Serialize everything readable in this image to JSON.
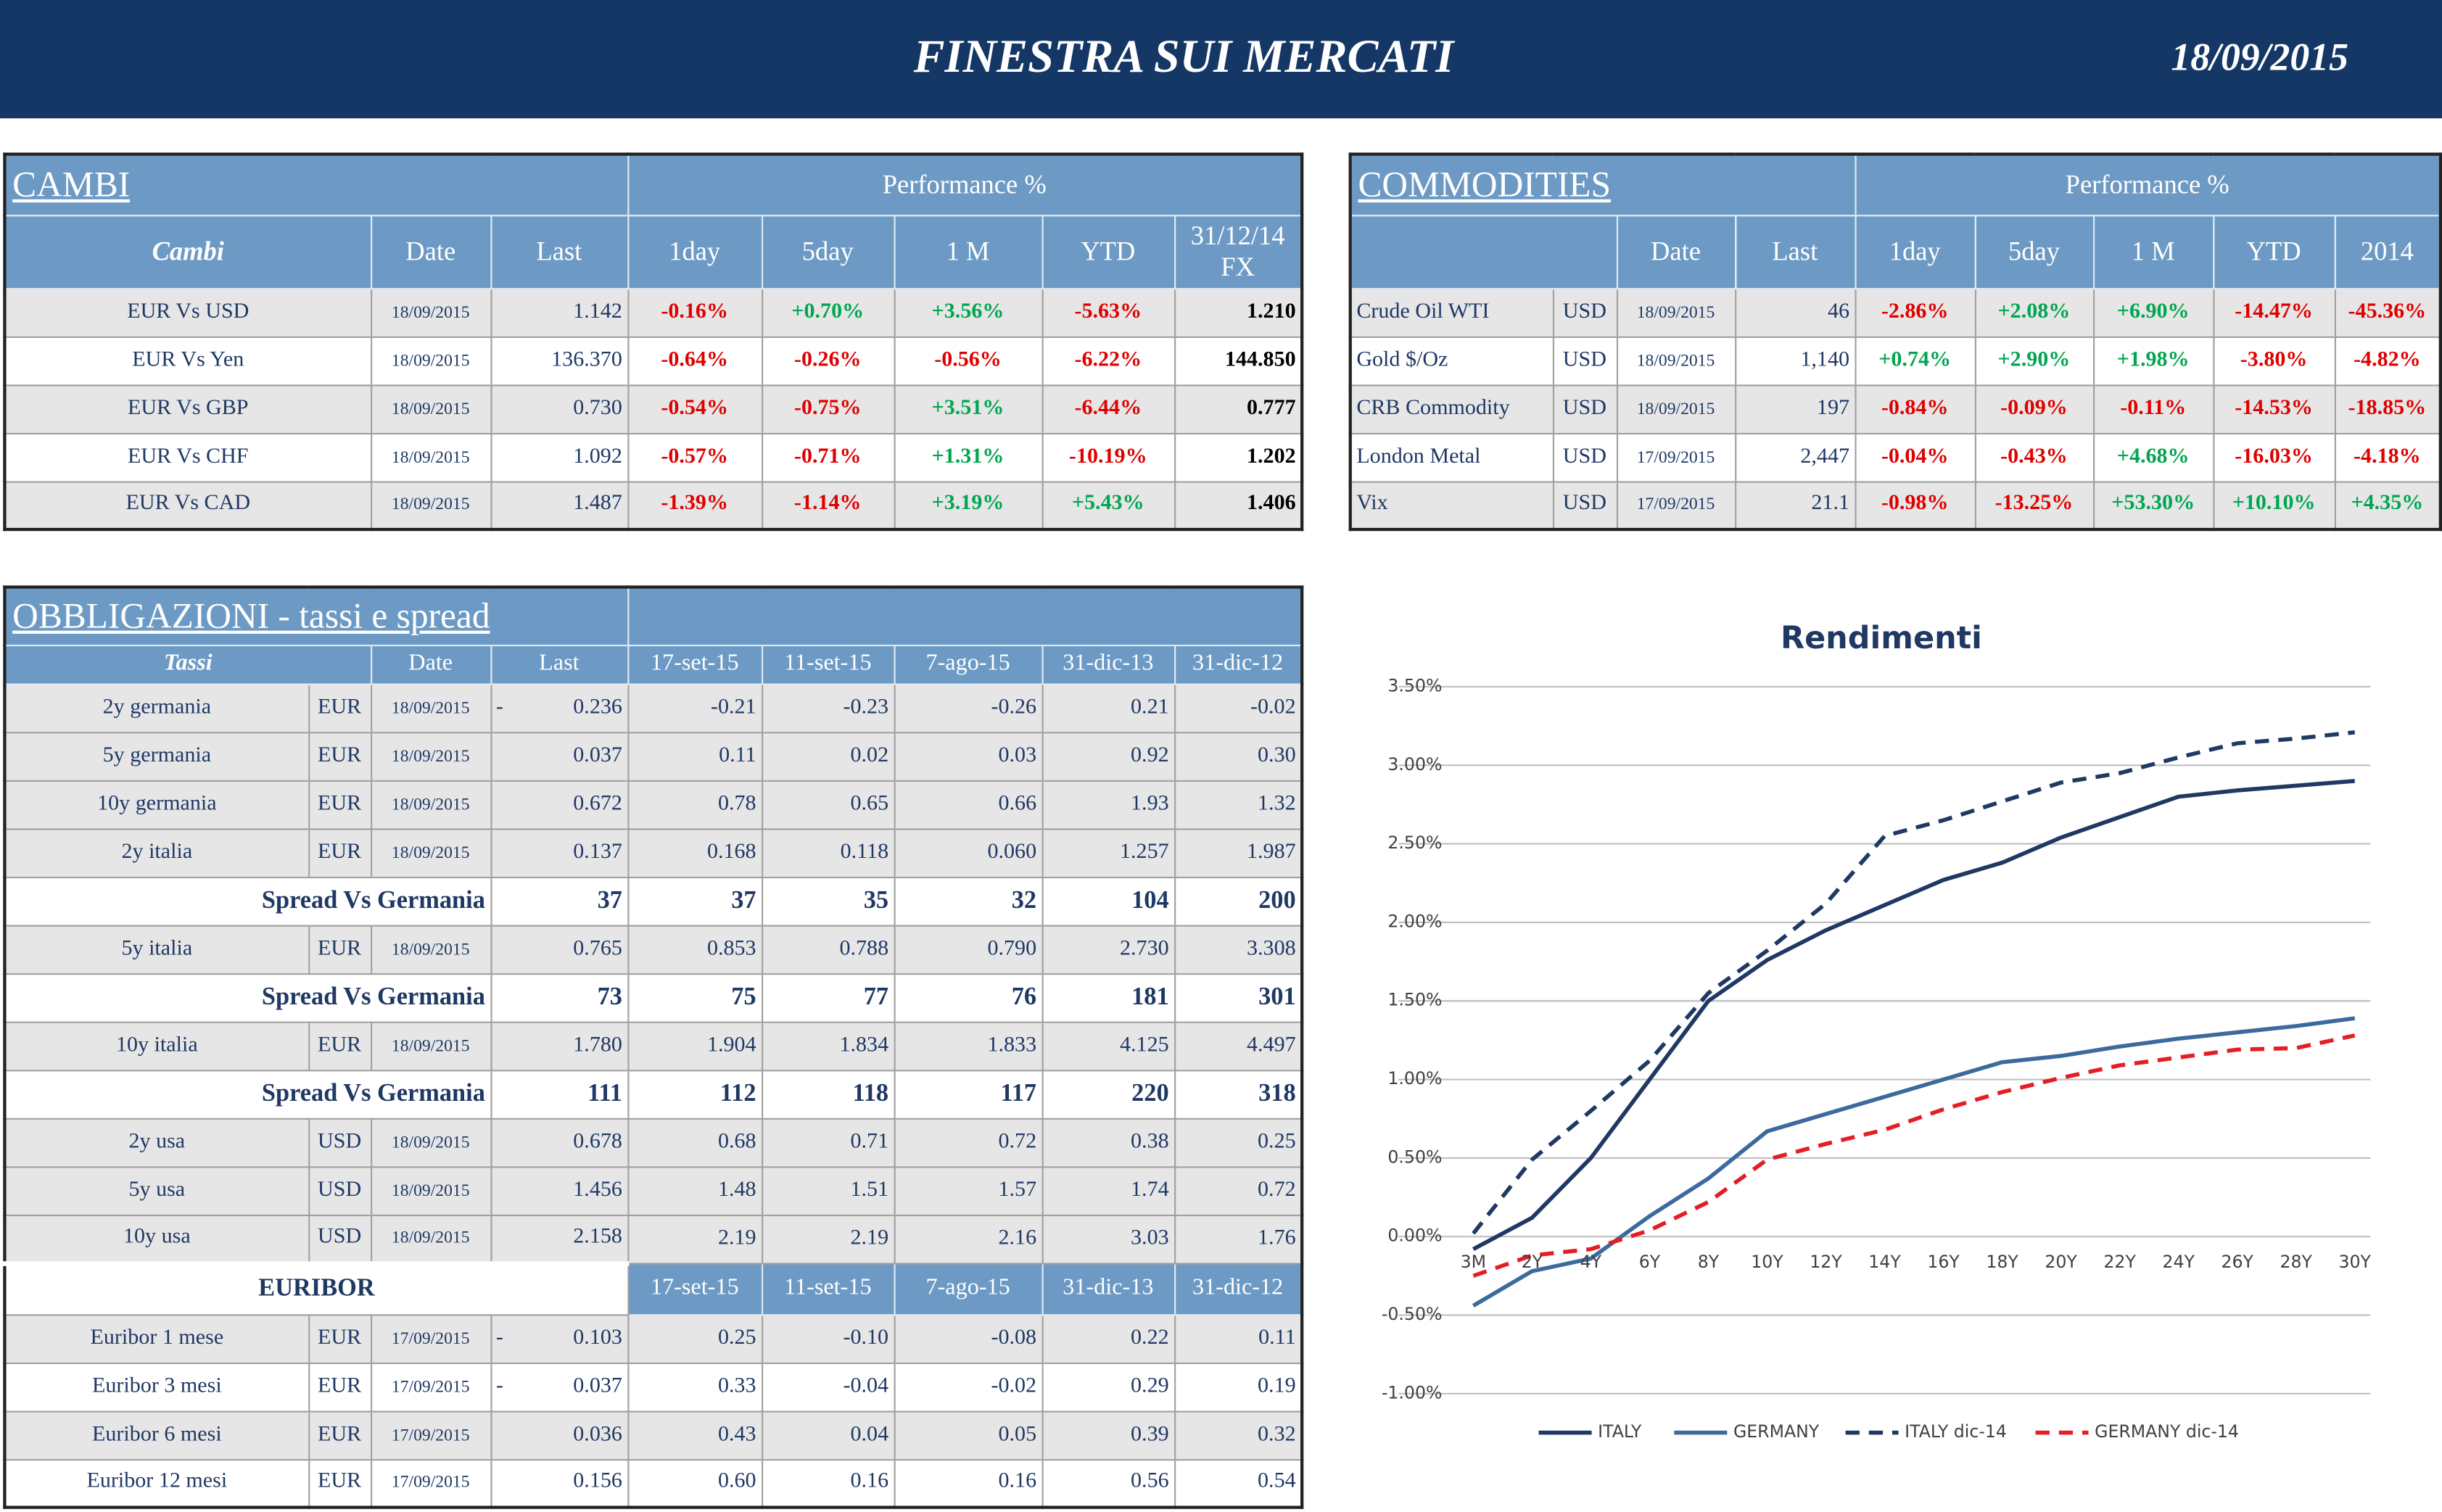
{
  "header": {
    "title": "FINESTRA SUI MERCATI",
    "date": "18/09/2015"
  },
  "cambi": {
    "title": "CAMBI",
    "performance": "Performance  %",
    "columns": [
      "Cambi",
      "Date",
      "Last",
      "1day",
      "5day",
      "1 M",
      "YTD",
      "31/12/14 FX"
    ],
    "rows": [
      [
        "EUR Vs USD",
        "18/09/2015",
        "1.142",
        "-0.16%",
        "+0.70%",
        "+3.56%",
        "-5.63%",
        "1.210"
      ],
      [
        "EUR Vs Yen",
        "18/09/2015",
        "136.370",
        "-0.64%",
        "-0.26%",
        "-0.56%",
        "-6.22%",
        "144.850"
      ],
      [
        "EUR Vs GBP",
        "18/09/2015",
        "0.730",
        "-0.54%",
        "-0.75%",
        "+3.51%",
        "-6.44%",
        "0.777"
      ],
      [
        "EUR Vs CHF",
        "18/09/2015",
        "1.092",
        "-0.57%",
        "-0.71%",
        "+1.31%",
        "-10.19%",
        "1.202"
      ],
      [
        "EUR Vs CAD",
        "18/09/2015",
        "1.487",
        "-1.39%",
        "-1.14%",
        "+3.19%",
        "+5.43%",
        "1.406"
      ]
    ]
  },
  "commodities": {
    "title": "COMMODITIES",
    "performance": "Performance  %",
    "columns": [
      "Date",
      "Last",
      "1day",
      "5day",
      "1 M",
      "YTD",
      "2014"
    ],
    "rows": [
      [
        "Crude Oil WTI",
        "USD",
        "18/09/2015",
        "46",
        "-2.86%",
        "+2.08%",
        "+6.90%",
        "-14.47%",
        "-45.36%"
      ],
      [
        "Gold $/Oz",
        "USD",
        "18/09/2015",
        "1,140",
        "+0.74%",
        "+2.90%",
        "+1.98%",
        "-3.80%",
        "-4.82%"
      ],
      [
        "CRB Commodity",
        "USD",
        "18/09/2015",
        "197",
        "-0.84%",
        "-0.09%",
        "-0.11%",
        "-14.53%",
        "-18.85%"
      ],
      [
        "London Metal",
        "USD",
        "17/09/2015",
        "2,447",
        "-0.04%",
        "-0.43%",
        "+4.68%",
        "-16.03%",
        "-4.18%"
      ],
      [
        "Vix",
        "USD",
        "17/09/2015",
        "21.1",
        "-0.98%",
        "-13.25%",
        "+53.30%",
        "+10.10%",
        "+4.35%"
      ]
    ]
  },
  "obbligazioni": {
    "title": "OBBLIGAZIONI - tassi e spread",
    "columns": [
      "Tassi",
      "Date",
      "Last",
      "17-set-15",
      "11-set-15",
      "7-ago-15",
      "31-dic-13",
      "31-dic-12"
    ],
    "rows": [
      {
        "name": "2y germania",
        "currency": "EUR",
        "date": "18/09/2015",
        "sign": "-",
        "last": "0.236",
        "values": [
          "-0.21",
          "-0.23",
          "-0.26",
          "0.21",
          "-0.02"
        ]
      },
      {
        "name": "5y germania",
        "currency": "EUR",
        "date": "18/09/2015",
        "last": "0.037",
        "values": [
          "0.11",
          "0.02",
          "0.03",
          "0.92",
          "0.30"
        ]
      },
      {
        "name": "10y germania",
        "currency": "EUR",
        "date": "18/09/2015",
        "last": "0.672",
        "values": [
          "0.78",
          "0.65",
          "0.66",
          "1.93",
          "1.32"
        ]
      },
      {
        "name": "2y italia",
        "currency": "EUR",
        "date": "18/09/2015",
        "last": "0.137",
        "values": [
          "0.168",
          "0.118",
          "0.060",
          "1.257",
          "1.987"
        ]
      },
      {
        "spread": "Spread Vs Germania",
        "last": "37",
        "values": [
          "37",
          "35",
          "32",
          "104",
          "200"
        ]
      },
      {
        "name": "5y italia",
        "currency": "EUR",
        "date": "18/09/2015",
        "last": "0.765",
        "values": [
          "0.853",
          "0.788",
          "0.790",
          "2.730",
          "3.308"
        ]
      },
      {
        "spread": "Spread Vs Germania",
        "last": "73",
        "values": [
          "75",
          "77",
          "76",
          "181",
          "301"
        ]
      },
      {
        "name": "10y italia",
        "currency": "EUR",
        "date": "18/09/2015",
        "last": "1.780",
        "values": [
          "1.904",
          "1.834",
          "1.833",
          "4.125",
          "4.497"
        ]
      },
      {
        "spread": "Spread Vs Germania",
        "last": "111",
        "values": [
          "112",
          "118",
          "117",
          "220",
          "318"
        ]
      },
      {
        "name": "2y usa",
        "currency": "USD",
        "date": "18/09/2015",
        "last": "0.678",
        "values": [
          "0.68",
          "0.71",
          "0.72",
          "0.38",
          "0.25"
        ]
      },
      {
        "name": "5y usa",
        "currency": "USD",
        "date": "18/09/2015",
        "last": "1.456",
        "values": [
          "1.48",
          "1.51",
          "1.57",
          "1.74",
          "0.72"
        ]
      },
      {
        "name": "10y usa",
        "currency": "USD",
        "date": "18/09/2015",
        "last": "2.158",
        "values": [
          "2.19",
          "2.19",
          "2.16",
          "3.03",
          "1.76"
        ]
      }
    ]
  },
  "euribor": {
    "title": "EURIBOR",
    "columns": [
      "17-set-15",
      "11-set-15",
      "7-ago-15",
      "31-dic-13",
      "31-dic-12"
    ],
    "rows": [
      {
        "name": "Euribor 1 mese",
        "currency": "EUR",
        "date": "17/09/2015",
        "sign": "-",
        "last": "0.103",
        "values": [
          "0.25",
          "-0.10",
          "-0.08",
          "0.22",
          "0.11"
        ]
      },
      {
        "name": "Euribor 3 mesi",
        "currency": "EUR",
        "date": "17/09/2015",
        "sign": "-",
        "last": "0.037",
        "values": [
          "0.33",
          "-0.04",
          "-0.02",
          "0.29",
          "0.19"
        ]
      },
      {
        "name": "Euribor 6 mesi",
        "currency": "EUR",
        "date": "17/09/2015",
        "last": "0.036",
        "values": [
          "0.43",
          "0.04",
          "0.05",
          "0.39",
          "0.32"
        ]
      },
      {
        "name": "Euribor 12 mesi",
        "currency": "EUR",
        "date": "17/09/2015",
        "last": "0.156",
        "values": [
          "0.60",
          "0.16",
          "0.16",
          "0.56",
          "0.54"
        ]
      }
    ]
  },
  "chart_data": {
    "type": "line",
    "title": "Rendimenti",
    "categories": [
      "3M",
      "2Y",
      "4Y",
      "6Y",
      "8Y",
      "10Y",
      "12Y",
      "14Y",
      "16Y",
      "18Y",
      "20Y",
      "22Y",
      "24Y",
      "26Y",
      "28Y",
      "30Y"
    ],
    "series": [
      {
        "name": "ITALY",
        "color": "#1f3864",
        "dashed": false,
        "values": [
          -0.08,
          0.12,
          0.5,
          1.0,
          1.5,
          1.76,
          1.95,
          2.11,
          2.27,
          2.38,
          2.54,
          2.67,
          2.8,
          2.84,
          2.87,
          2.9
        ]
      },
      {
        "name": "GERMANY",
        "color": "#3d6a9e",
        "dashed": false,
        "values": [
          -0.44,
          -0.22,
          -0.14,
          0.13,
          0.37,
          0.67,
          0.78,
          0.89,
          1.0,
          1.11,
          1.15,
          1.21,
          1.26,
          1.3,
          1.34,
          1.39
        ]
      },
      {
        "name": "ITALY dic-14",
        "color": "#1f3864",
        "dashed": true,
        "values": [
          0.02,
          0.49,
          0.8,
          1.12,
          1.55,
          1.82,
          2.12,
          2.55,
          2.65,
          2.77,
          2.89,
          2.95,
          3.05,
          3.14,
          3.17,
          3.21
        ]
      },
      {
        "name": "GERMANY dic-14",
        "color": "#e41e26",
        "dashed": true,
        "values": [
          -0.25,
          -0.12,
          -0.08,
          0.04,
          0.22,
          0.49,
          0.59,
          0.68,
          0.81,
          0.92,
          1.01,
          1.09,
          1.14,
          1.19,
          1.2,
          1.28
        ]
      }
    ],
    "ylim": [
      -1,
      3.5
    ],
    "yticks": [
      {
        "value": -1,
        "label": "-1.00%"
      },
      {
        "value": -0.5,
        "label": "-0.50%"
      },
      {
        "value": 0,
        "label": "0.00%"
      },
      {
        "value": 0.5,
        "label": "0.50%"
      },
      {
        "value": 1,
        "label": "1.00%"
      },
      {
        "value": 1.5,
        "label": "1.50%"
      },
      {
        "value": 2,
        "label": "2.00%"
      },
      {
        "value": 2.5,
        "label": "2.50%"
      },
      {
        "value": 3,
        "label": "3.00%"
      },
      {
        "value": 3.5,
        "label": "3.50%"
      }
    ],
    "grid": true,
    "legend": "bottom"
  }
}
